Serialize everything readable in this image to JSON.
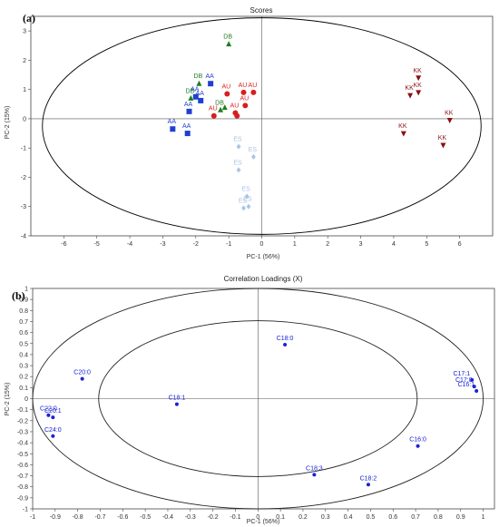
{
  "chart_data": [
    {
      "type": "scatter",
      "panel_label": "(a)",
      "title": "Scores",
      "xlabel": "PC-1 (56%)",
      "ylabel": "PC-2 (15%)",
      "xlim": [
        -7,
        7
      ],
      "ylim": [
        -4,
        3.5
      ],
      "x_ticks": [
        -6,
        -5,
        -4,
        -3,
        -2,
        -1,
        0,
        1,
        2,
        3,
        4,
        5,
        6
      ],
      "y_ticks": [
        -4,
        -3,
        -2,
        -1,
        0,
        1,
        2,
        3
      ],
      "grid": false,
      "ellipse": {
        "cx": 0,
        "cy": -0.25,
        "rx": 6.65,
        "ry": 3.7,
        "color": "#000000"
      },
      "colors": {
        "DB": "#1e7d1e",
        "AA": "#1f3fd1",
        "AU": "#d81e1e",
        "ES": "#a8c4e6",
        "KK": "#8b1010"
      },
      "points": [
        {
          "group": "DB",
          "marker": "triangle",
          "x": -1.0,
          "y": 2.55,
          "label": "DB"
        },
        {
          "group": "DB",
          "marker": "triangle",
          "x": -1.9,
          "y": 1.2,
          "label": "DB"
        },
        {
          "group": "DB",
          "marker": "triangle",
          "x": -2.15,
          "y": 0.7,
          "label": "DB"
        },
        {
          "group": "DB",
          "marker": "triangle",
          "x": -1.25,
          "y": 0.3,
          "label": "DB"
        },
        {
          "group": "DB",
          "marker": "triangle",
          "x": -1.12,
          "y": 0.38,
          "label": ""
        },
        {
          "group": "AA",
          "marker": "square",
          "x": -1.55,
          "y": 1.2,
          "label": "AA"
        },
        {
          "group": "AA",
          "marker": "square",
          "x": -2.0,
          "y": 0.75,
          "label": "AA"
        },
        {
          "group": "AA",
          "marker": "square",
          "x": -1.85,
          "y": 0.62,
          "label": "AA"
        },
        {
          "group": "AA",
          "marker": "square",
          "x": -2.2,
          "y": 0.25,
          "label": "AA"
        },
        {
          "group": "AA",
          "marker": "square",
          "x": -2.7,
          "y": -0.35,
          "label": "AA"
        },
        {
          "group": "AA",
          "marker": "square",
          "x": -2.25,
          "y": -0.5,
          "label": "AA"
        },
        {
          "group": "AU",
          "marker": "circle",
          "x": -0.55,
          "y": 0.9,
          "label": "AU"
        },
        {
          "group": "AU",
          "marker": "circle",
          "x": -0.25,
          "y": 0.9,
          "label": "AU"
        },
        {
          "group": "AU",
          "marker": "circle",
          "x": -1.05,
          "y": 0.85,
          "label": "AU"
        },
        {
          "group": "AU",
          "marker": "circle",
          "x": -0.5,
          "y": 0.45,
          "label": "AU"
        },
        {
          "group": "AU",
          "marker": "circle",
          "x": -0.8,
          "y": 0.2,
          "label": "AU"
        },
        {
          "group": "AU",
          "marker": "circle",
          "x": -1.45,
          "y": 0.1,
          "label": "AU"
        },
        {
          "group": "AU",
          "marker": "circle",
          "x": -0.75,
          "y": 0.1,
          "label": ""
        },
        {
          "group": "ES",
          "marker": "diamond",
          "x": -0.7,
          "y": -0.95,
          "label": "ES"
        },
        {
          "group": "ES",
          "marker": "diamond",
          "x": -0.25,
          "y": -1.3,
          "label": "ES"
        },
        {
          "group": "ES",
          "marker": "diamond",
          "x": -0.7,
          "y": -1.75,
          "label": "ES"
        },
        {
          "group": "ES",
          "marker": "diamond",
          "x": -0.45,
          "y": -2.65,
          "label": "ES"
        },
        {
          "group": "ES",
          "marker": "diamond",
          "x": -0.4,
          "y": -3.0,
          "label": "ES"
        },
        {
          "group": "ES",
          "marker": "diamond",
          "x": -0.55,
          "y": -3.05,
          "label": "ES"
        },
        {
          "group": "KK",
          "marker": "triangle-down",
          "x": 4.75,
          "y": 1.4,
          "label": "KK"
        },
        {
          "group": "KK",
          "marker": "triangle-down",
          "x": 4.75,
          "y": 0.9,
          "label": "KK"
        },
        {
          "group": "KK",
          "marker": "triangle-down",
          "x": 4.5,
          "y": 0.8,
          "label": "KK"
        },
        {
          "group": "KK",
          "marker": "triangle-down",
          "x": 5.7,
          "y": -0.05,
          "label": "KK"
        },
        {
          "group": "KK",
          "marker": "triangle-down",
          "x": 4.3,
          "y": -0.5,
          "label": "KK"
        },
        {
          "group": "KK",
          "marker": "triangle-down",
          "x": 5.5,
          "y": -0.9,
          "label": "KK"
        }
      ]
    },
    {
      "type": "scatter",
      "panel_label": "(b)",
      "title": "Correlation Loadings (X)",
      "xlabel": "PC-1 (56%)",
      "ylabel": "PC-2 (15%)",
      "xlim": [
        -1,
        1.05
      ],
      "ylim": [
        -1,
        1
      ],
      "x_ticks": [
        -1,
        -0.9,
        -0.8,
        -0.7,
        -0.6,
        -0.5,
        -0.4,
        -0.3,
        -0.2,
        -0.1,
        0,
        0.1,
        0.2,
        0.3,
        0.4,
        0.5,
        0.6,
        0.7,
        0.8,
        0.9,
        1
      ],
      "y_ticks": [
        -1,
        -0.9,
        -0.8,
        -0.7,
        -0.6,
        -0.5,
        -0.4,
        -0.3,
        -0.2,
        -0.1,
        0,
        0.1,
        0.2,
        0.3,
        0.4,
        0.5,
        0.6,
        0.7,
        0.8,
        0.9,
        1
      ],
      "grid": false,
      "circles": [
        {
          "r": 1.0
        },
        {
          "r": 0.707
        }
      ],
      "point_color": "#1a22d6",
      "points": [
        {
          "x": 0.12,
          "y": 0.49,
          "label": "C18:0"
        },
        {
          "x": -0.78,
          "y": 0.18,
          "label": "C20:0"
        },
        {
          "x": -0.36,
          "y": -0.05,
          "label": "C18:1"
        },
        {
          "x": -0.93,
          "y": -0.15,
          "label": "C22:0"
        },
        {
          "x": -0.91,
          "y": -0.17,
          "label": "C20:1"
        },
        {
          "x": -0.91,
          "y": -0.34,
          "label": "C24:0"
        },
        {
          "x": 0.95,
          "y": 0.17,
          "label": "C17:1"
        },
        {
          "x": 0.96,
          "y": 0.11,
          "label": "C17:0"
        },
        {
          "x": 0.97,
          "y": 0.07,
          "label": "C16:1"
        },
        {
          "x": 0.71,
          "y": -0.43,
          "label": "C16:0"
        },
        {
          "x": 0.25,
          "y": -0.69,
          "label": "C18:3"
        },
        {
          "x": 0.49,
          "y": -0.78,
          "label": "C18:2"
        }
      ]
    }
  ]
}
